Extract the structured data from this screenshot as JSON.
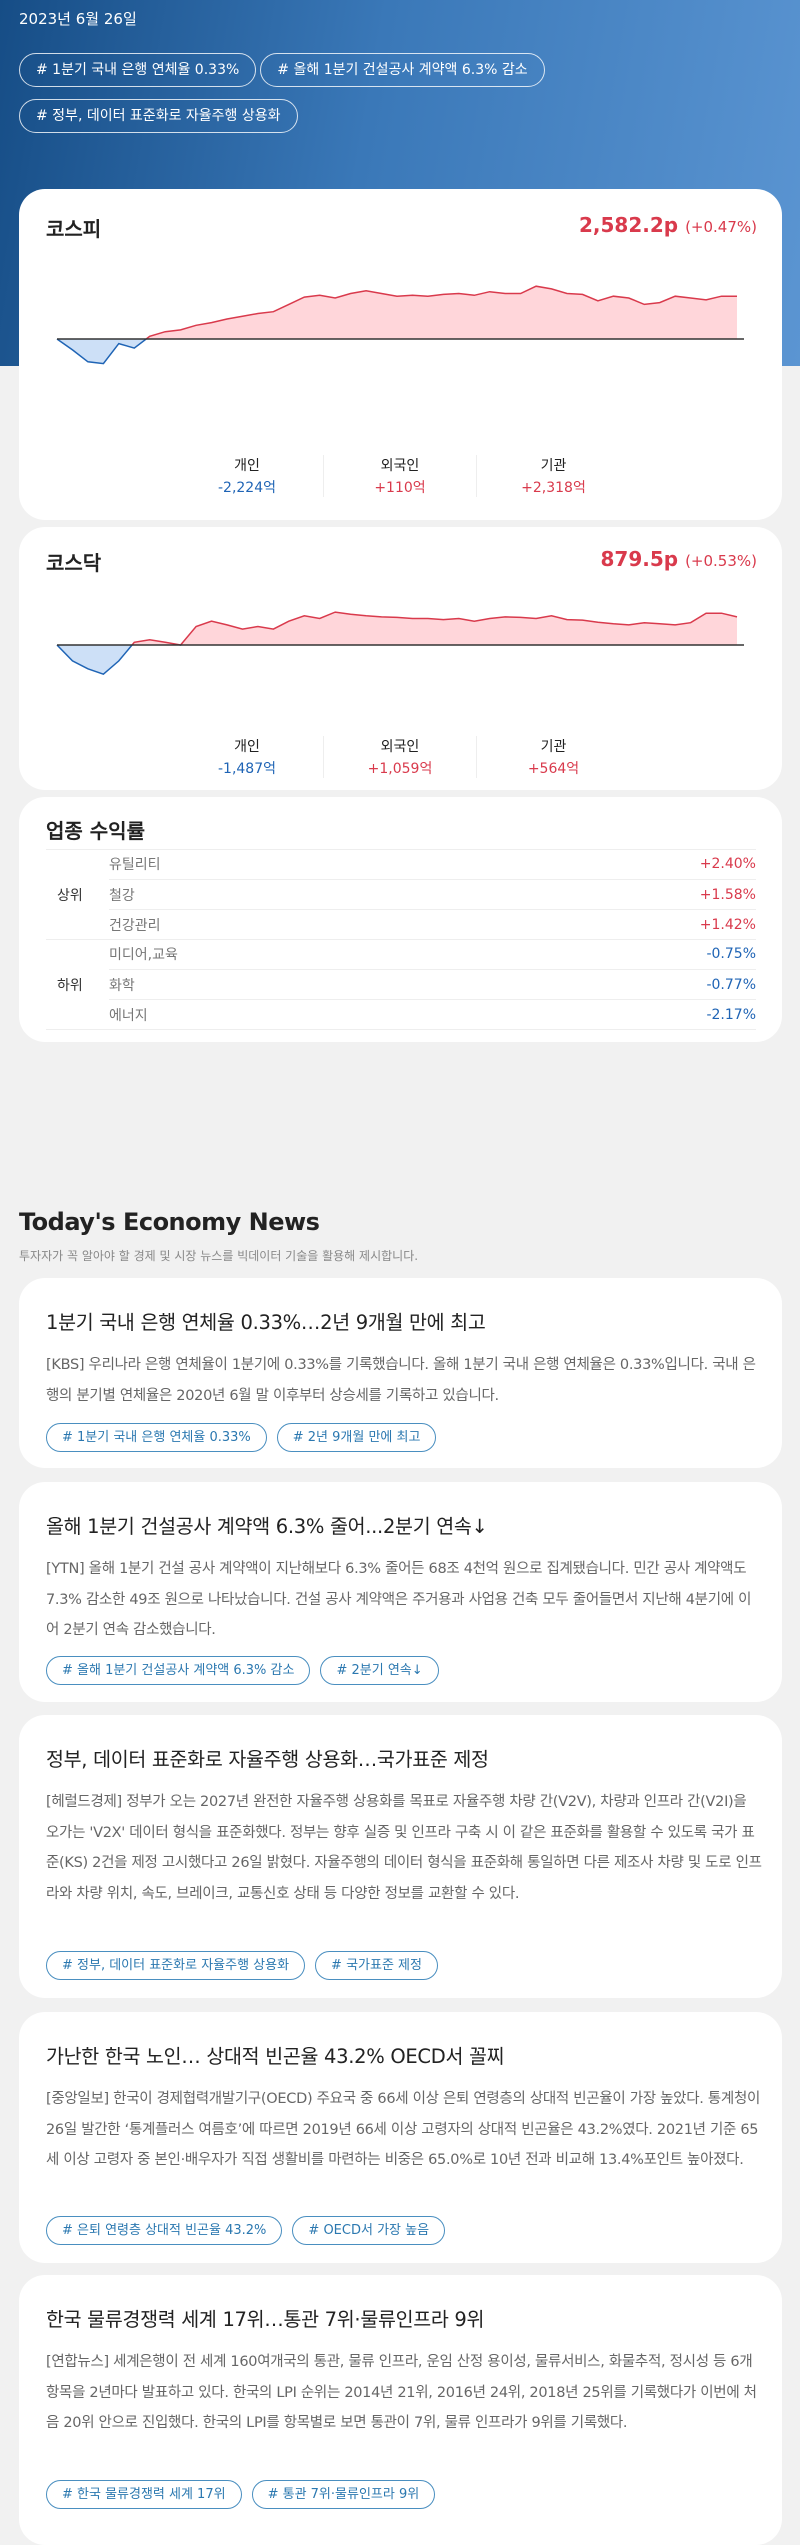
{
  "header": {
    "date": "2023년 6월 26일",
    "tags": [
      "# 1분기 국내 은행 연체율 0.33%",
      "# 올해 1분기 건설공사 계약액 6.3% 감소",
      "# 정부, 데이터 표준화로 자율주행 상용화"
    ]
  },
  "colors": {
    "up": "#d93a4c",
    "down": "#1f64b5",
    "up_fill": "#ffd6da",
    "down_fill": "#cde0f7"
  },
  "markets": [
    {
      "name": "코스피",
      "price": "2,582.2p",
      "change": "(+0.47%)",
      "investors": [
        {
          "label": "개인",
          "value": "-2,224억",
          "dir": "down"
        },
        {
          "label": "외국인",
          "value": "+110억",
          "dir": "up"
        },
        {
          "label": "기관",
          "value": "+2,318억",
          "dir": "up"
        }
      ]
    },
    {
      "name": "코스닥",
      "price": "879.5p",
      "change": "(+0.53%)",
      "investors": [
        {
          "label": "개인",
          "value": "-1,487억",
          "dir": "down"
        },
        {
          "label": "외국인",
          "value": "+1,059억",
          "dir": "up"
        },
        {
          "label": "기관",
          "value": "+564억",
          "dir": "up"
        }
      ]
    }
  ],
  "chart_data": [
    {
      "type": "area",
      "name": "코스피",
      "ylabel": "change %",
      "baseline": 0,
      "values": [
        0,
        -0.12,
        -0.25,
        -0.27,
        -0.05,
        -0.1,
        0.03,
        0.08,
        0.1,
        0.15,
        0.18,
        0.22,
        0.25,
        0.28,
        0.3,
        0.38,
        0.46,
        0.48,
        0.45,
        0.5,
        0.53,
        0.5,
        0.47,
        0.48,
        0.47,
        0.49,
        0.5,
        0.48,
        0.52,
        0.5,
        0.5,
        0.58,
        0.55,
        0.5,
        0.49,
        0.42,
        0.47,
        0.45,
        0.38,
        0.4,
        0.47,
        0.45,
        0.43,
        0.47,
        0.47
      ]
    },
    {
      "type": "area",
      "name": "코스닥",
      "ylabel": "change %",
      "baseline": 0,
      "values": [
        0,
        -0.3,
        -0.45,
        -0.55,
        -0.3,
        0.05,
        0.1,
        0.05,
        0.0,
        0.35,
        0.45,
        0.38,
        0.3,
        0.35,
        0.3,
        0.45,
        0.55,
        0.5,
        0.62,
        0.58,
        0.55,
        0.53,
        0.52,
        0.5,
        0.5,
        0.48,
        0.5,
        0.45,
        0.5,
        0.53,
        0.52,
        0.5,
        0.55,
        0.48,
        0.47,
        0.43,
        0.4,
        0.38,
        0.42,
        0.4,
        0.38,
        0.42,
        0.6,
        0.6,
        0.53
      ]
    }
  ],
  "sectors": {
    "title": "업종 수익률",
    "top_label": "상위",
    "bottom_label": "하위",
    "rows": [
      {
        "name": "유틸리티",
        "value": "+2.40%",
        "dir": "up"
      },
      {
        "name": "철강",
        "value": "+1.58%",
        "dir": "up"
      },
      {
        "name": "건강관리",
        "value": "+1.42%",
        "dir": "up"
      },
      {
        "name": "미디어,교육",
        "value": "-0.75%",
        "dir": "down"
      },
      {
        "name": "화학",
        "value": "-0.77%",
        "dir": "down"
      },
      {
        "name": "에너지",
        "value": "-2.17%",
        "dir": "down"
      }
    ]
  },
  "news": {
    "title": "Today's Economy News",
    "subtitle": "투자자가 꼭 알아야 할 경제 및 시장 뉴스를 빅데이터 기술을 활용해 제시합니다.",
    "items": [
      {
        "title": "1분기 국내 은행 연체율 0.33%…2년 9개월 만에 최고",
        "body": "[KBS] 우리나라 은행 연체율이 1분기에 0.33%를 기록했습니다. 올해 1분기 국내 은행 연체율은 0.33%입니다. 국내 은행의 분기별 연체율은 2020년 6월 말 이후부터 상승세를 기록하고 있습니다.",
        "tags": [
          "# 1분기 국내 은행 연체율 0.33%",
          "# 2년 9개월 만에 최고"
        ]
      },
      {
        "title": "올해 1분기 건설공사 계약액 6.3% 줄어...2분기 연속↓",
        "body": "[YTN] 올해 1분기 건설 공사 계약액이 지난해보다 6.3% 줄어든 68조 4천억 원으로 집계됐습니다. 민간 공사 계약액도 7.3% 감소한 49조 원으로 나타났습니다. 건설 공사 계약액은 주거용과 사업용 건축 모두 줄어들면서 지난해 4분기에 이어 2분기 연속 감소했습니다.",
        "tags": [
          "# 올해 1분기 건설공사 계약액 6.3% 감소",
          "# 2분기 연속↓"
        ]
      },
      {
        "title": "정부, 데이터 표준화로 자율주행 상용화…국가표준 제정",
        "body": "[헤럴드경제] 정부가 오는 2027년 완전한 자율주행 상용화를 목표로 자율주행 차량 간(V2V), 차량과 인프라 간(V2I)을 오가는 'V2X' 데이터 형식을 표준화했다. 정부는 향후 실증 및 인프라 구축 시 이 같은 표준화를 활용할 수 있도록 국가 표준(KS) 2건을 제정 고시했다고 26일 밝혔다. 자율주행의 데이터 형식을 표준화해 통일하면 다른 제조사 차량 및 도로 인프라와 차량 위치, 속도, 브레이크, 교통신호 상태 등 다양한 정보를 교환할 수 있다.",
        "tags": [
          "# 정부, 데이터 표준화로 자율주행 상용화",
          "# 국가표준 제정"
        ]
      },
      {
        "title": "가난한 한국 노인… 상대적 빈곤율 43.2% OECD서 꼴찌",
        "body": "[중앙일보] 한국이 경제협력개발기구(OECD) 주요국 중 66세 이상 은퇴 연령층의 상대적 빈곤율이 가장 높았다. 통계청이 26일 발간한 ‘통계플러스 여름호’에 따르면 2019년 66세 이상 고령자의 상대적 빈곤율은 43.2%였다. 2021년 기준 65세 이상 고령자 중 본인·배우자가 직접 생활비를 마련하는 비중은 65.0%로 10년 전과 비교해 13.4%포인트 높아졌다.",
        "tags": [
          "# 은퇴 연령층 상대적 빈곤율 43.2%",
          "# OECD서 가장 높음"
        ]
      },
      {
        "title": "한국 물류경쟁력 세계 17위…통관 7위·물류인프라 9위",
        "body": "[연합뉴스] 세계은행이 전 세계 160여개국의 통관, 물류 인프라, 운임 산정 용이성, 물류서비스, 화물추적, 정시성 등 6개 항목을 2년마다 발표하고 있다. 한국의 LPI 순위는 2014년 21위, 2016년 24위, 2018년 25위를 기록했다가 이번에 처음 20위 안으로 진입했다. 한국의 LPI를 항목별로 보면 통관이 7위, 물류 인프라가 9위를 기록했다.",
        "tags": [
          "# 한국 물류경쟁력 세계 17위",
          "# 통관 7위·물류인프라 9위"
        ]
      }
    ]
  }
}
